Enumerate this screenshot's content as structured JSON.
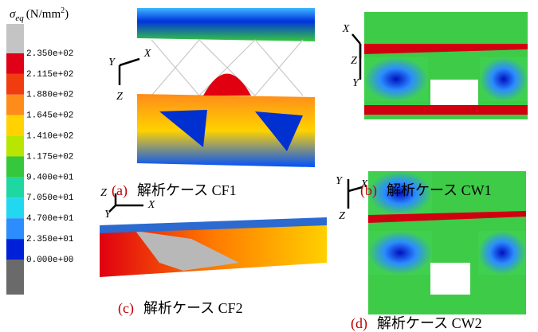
{
  "legend": {
    "symbol": "σ",
    "subscript": "eq",
    "unit": "(N/mm",
    "superscript": "2",
    "unit_close": ")",
    "labels": [
      "2.350e+02",
      "2.115e+02",
      "1.880e+02",
      "1.645e+02",
      "1.410e+02",
      "1.175e+02",
      "9.400e+01",
      "7.050e+01",
      "4.700e+01",
      "2.350e+01",
      "0.000e+00"
    ]
  },
  "panels": [
    {
      "label": "(a)",
      "caption": "解析ケース CF1",
      "axes": [
        "Y",
        "X",
        "Z"
      ]
    },
    {
      "label": "(b)",
      "caption": "解析ケース CW1",
      "axes": [
        "X",
        "Z",
        "Y"
      ]
    },
    {
      "label": "(c)",
      "caption": "解析ケース CF2",
      "axes": [
        "Z",
        "Y",
        "X"
      ]
    },
    {
      "label": "(d)",
      "caption": "解析ケース CW2",
      "axes": [
        "Y",
        "X",
        "Z"
      ]
    }
  ]
}
